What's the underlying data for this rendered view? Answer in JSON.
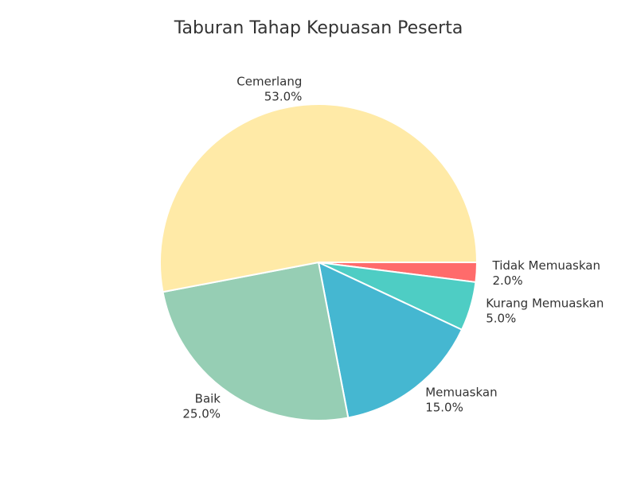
{
  "chart_data": {
    "type": "pie",
    "title": "Taburan Tahap Kepuasan Peserta",
    "slices": [
      {
        "label": "Tidak Memuaskan",
        "value": 2.0,
        "percent_label": "2.0%",
        "color": "#ff6b6b"
      },
      {
        "label": "Kurang Memuaskan",
        "value": 5.0,
        "percent_label": "5.0%",
        "color": "#4ecdc4"
      },
      {
        "label": "Memuaskan",
        "value": 15.0,
        "percent_label": "15.0%",
        "color": "#45b7d1"
      },
      {
        "label": "Baik",
        "value": 25.0,
        "percent_label": "25.0%",
        "color": "#96ceb4"
      },
      {
        "label": "Cemerlang",
        "value": 53.0,
        "percent_label": "53.0%",
        "color": "#ffeaa7"
      }
    ],
    "start_angle_deg": 0,
    "direction": "clockwise",
    "legend": "none"
  }
}
